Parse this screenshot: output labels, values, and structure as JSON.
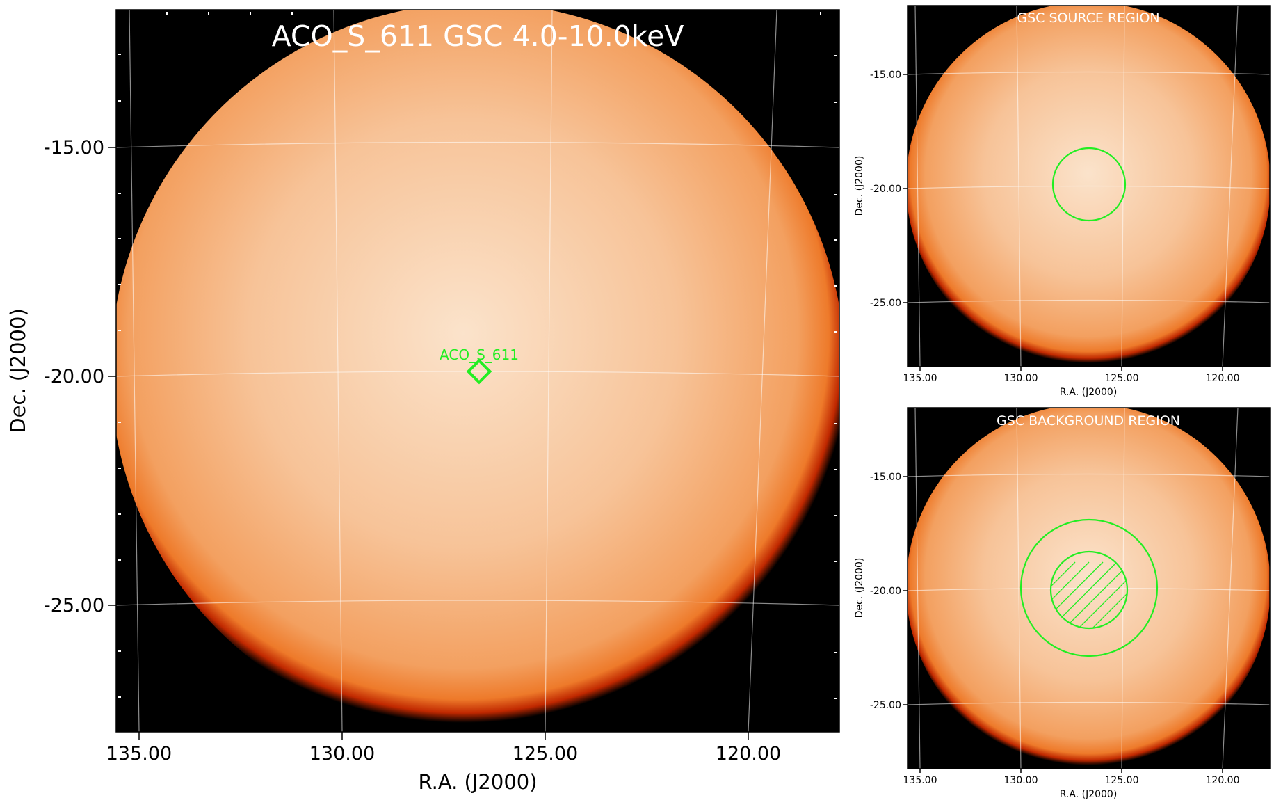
{
  "main": {
    "title": "ACO_S_611 GSC 4.0-10.0keV",
    "source_label": "ACO_S_611",
    "x_axis_label": "R.A. (J2000)",
    "y_axis_label": "Dec. (J2000)",
    "x_ticks": [
      "135.00",
      "130.00",
      "125.00",
      "120.00"
    ],
    "y_ticks": [
      "-15.00",
      "-20.00",
      "-25.00"
    ]
  },
  "source_panel": {
    "title": "GSC SOURCE REGION",
    "x_axis_label": "R.A. (J2000)",
    "y_axis_label": "Dec. (J2000)",
    "x_ticks": [
      "135.00",
      "130.00",
      "125.00",
      "120.00"
    ],
    "y_ticks": [
      "-15.00",
      "-20.00",
      "-25.00"
    ]
  },
  "background_panel": {
    "title": "GSC BACKGROUND REGION",
    "x_axis_label": "R.A. (J2000)",
    "y_axis_label": "Dec. (J2000)",
    "x_ticks": [
      "135.00",
      "130.00",
      "125.00",
      "120.00"
    ],
    "y_ticks": [
      "-15.00",
      "-20.00",
      "-25.00"
    ]
  },
  "colors": {
    "disk_center": "#fbe2c8",
    "disk_mid": "#f6bd8c",
    "disk_edge": "#f08a3c",
    "rim": "#b01400",
    "sky": "#000000",
    "region": "#22ee22",
    "grid": "#ffffff"
  }
}
